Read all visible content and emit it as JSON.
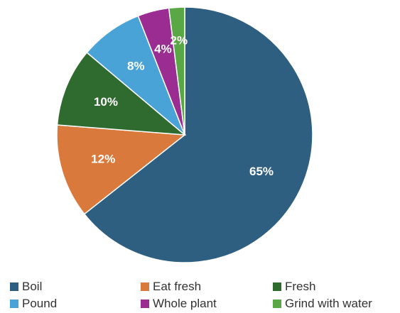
{
  "chart_data": {
    "type": "pie",
    "title": "",
    "categories": [
      "Boil",
      "Eat fresh",
      "Fresh",
      "Pound",
      "Whole plant",
      "Grind with water"
    ],
    "values": [
      65,
      12,
      10,
      8,
      4,
      2
    ],
    "labels": [
      "65%",
      "12%",
      "10%",
      "8%",
      "4%",
      "2%"
    ],
    "colors": [
      "#2e5f80",
      "#d97a3c",
      "#2f6b2e",
      "#4aa3d6",
      "#9a2c92",
      "#5aa845"
    ],
    "legend_position": "bottom"
  }
}
